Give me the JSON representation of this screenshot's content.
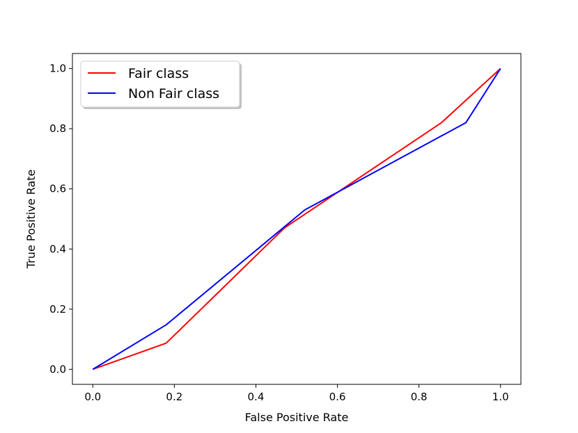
{
  "chart_data": {
    "type": "line",
    "xlabel": "False Positive Rate",
    "ylabel": "True Positive Rate",
    "xlim": [
      -0.05,
      1.05
    ],
    "ylim": [
      -0.05,
      1.05
    ],
    "xticks": [
      0.0,
      0.2,
      0.4,
      0.6,
      0.8,
      1.0
    ],
    "yticks": [
      0.0,
      0.2,
      0.4,
      0.6,
      0.8,
      1.0
    ],
    "xtick_labels": [
      "0.0",
      "0.2",
      "0.4",
      "0.6",
      "0.8",
      "1.0"
    ],
    "ytick_labels": [
      "0.0",
      "0.2",
      "0.4",
      "0.6",
      "0.8",
      "1.0"
    ],
    "grid": false,
    "legend_position": "top-left",
    "series": [
      {
        "name": "Fair class",
        "color": "#ff0000",
        "x": [
          0.0,
          0.18,
          0.47,
          0.855,
          1.0
        ],
        "y": [
          0.0,
          0.087,
          0.47,
          0.82,
          1.0
        ]
      },
      {
        "name": "Non Fair class",
        "color": "#0000ff",
        "x": [
          0.0,
          0.18,
          0.52,
          0.915,
          1.0
        ],
        "y": [
          0.0,
          0.148,
          0.53,
          0.82,
          1.0
        ]
      }
    ]
  }
}
